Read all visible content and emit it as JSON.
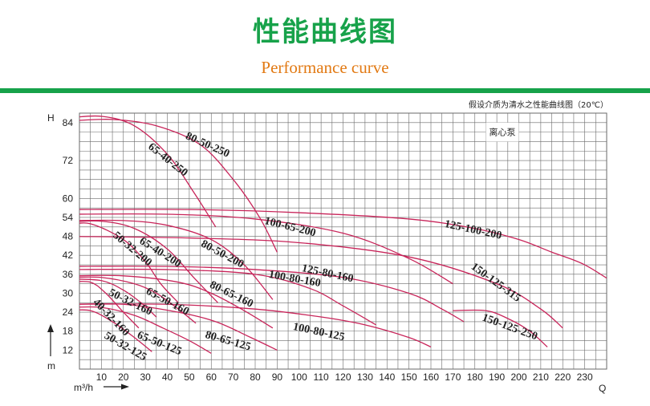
{
  "header": {
    "title_zh": "性能曲线图",
    "title_en": "Performance curve",
    "note": "假设介质为清水之性能曲线图（20℃）"
  },
  "colors": {
    "green": "#17a24a",
    "orange": "#e27a14",
    "curve": "#c8255a",
    "grid": "#6a6a6a"
  },
  "chart_data": {
    "type": "line",
    "title": "性能曲线图",
    "ylabel": "H",
    "yunit": "m",
    "xlabel": "Q",
    "xunit": "m³/h",
    "xlim": [
      0,
      240
    ],
    "ylim": [
      6,
      87
    ],
    "x_ticks": [
      10,
      20,
      30,
      40,
      50,
      60,
      70,
      80,
      90,
      100,
      110,
      120,
      130,
      140,
      150,
      160,
      170,
      180,
      190,
      200,
      210,
      220,
      230
    ],
    "y_ticks": [
      12,
      18,
      24,
      30,
      36,
      42,
      48,
      54,
      60,
      72,
      84
    ],
    "box_label": "离心泵",
    "series": [
      {
        "name": "80-50-250",
        "x": [
          -5,
          15,
          35,
          55,
          70,
          82,
          90
        ],
        "y": [
          84.5,
          85,
          83,
          77,
          66,
          54,
          43
        ],
        "label_pos": [
          48,
          79
        ],
        "label_rot": 24
      },
      {
        "name": "65-40-250",
        "x": [
          -5,
          10,
          25,
          40,
          52,
          62
        ],
        "y": [
          85.5,
          86,
          83,
          74,
          62,
          51
        ],
        "label_pos": [
          31,
          76
        ],
        "label_rot": 38
      },
      {
        "name": "125-100-200",
        "x": [
          -5,
          50,
          100,
          150,
          180,
          200,
          215,
          230,
          245
        ],
        "y": [
          56.5,
          56.5,
          55.5,
          53.5,
          50.5,
          47,
          43,
          39,
          32.5
        ],
        "label_pos": [
          166,
          51
        ],
        "label_rot": 12
      },
      {
        "name": "100-65-200",
        "x": [
          -5,
          40,
          80,
          120,
          150,
          170
        ],
        "y": [
          55,
          55,
          53.5,
          49,
          41,
          33
        ],
        "label_pos": [
          84,
          52
        ],
        "label_rot": 14
      },
      {
        "name": "80-50-200",
        "x": [
          -5,
          20,
          40,
          60,
          75,
          88
        ],
        "y": [
          53,
          53,
          51.5,
          47,
          39,
          28
        ],
        "label_pos": [
          55,
          45
        ],
        "label_rot": 28
      },
      {
        "name": "65-40-200",
        "x": [
          -5,
          10,
          25,
          40,
          52,
          63
        ],
        "y": [
          52.5,
          52.8,
          50.5,
          44,
          35,
          27
        ],
        "label_pos": [
          27,
          46
        ],
        "label_rot": 32
      },
      {
        "name": "50-32-200",
        "x": [
          -5,
          5,
          20,
          30,
          37,
          45
        ],
        "y": [
          51.5,
          52,
          47,
          40,
          33,
          27
        ],
        "label_pos": [
          15,
          48
        ],
        "label_rot": 40
      },
      {
        "name": "150-125-315",
        "x": [
          -5,
          50,
          100,
          150,
          190,
          210,
          220
        ],
        "y": [
          48,
          47.5,
          46,
          41.5,
          33,
          25,
          19
        ],
        "label_pos": [
          178,
          38
        ],
        "label_rot": 36
      },
      {
        "name": "125-80-160",
        "x": [
          -5,
          40,
          80,
          120,
          150,
          165,
          175
        ],
        "y": [
          38.5,
          38.5,
          37.5,
          35,
          30,
          25,
          21
        ],
        "label_pos": [
          101,
          37
        ],
        "label_rot": 12
      },
      {
        "name": "100-80-160",
        "x": [
          -5,
          40,
          80,
          105,
          120,
          135
        ],
        "y": [
          37.5,
          37.5,
          36,
          31.5,
          26,
          20
        ],
        "label_pos": [
          86,
          35
        ],
        "label_rot": 10
      },
      {
        "name": "80-65-160",
        "x": [
          -5,
          20,
          45,
          60,
          75,
          88
        ],
        "y": [
          35.5,
          35.5,
          33.5,
          30,
          24.5,
          19
        ],
        "label_pos": [
          59,
          32
        ],
        "label_rot": 26
      },
      {
        "name": "65-50-160",
        "x": [
          -5,
          10,
          25,
          35,
          45,
          53
        ],
        "y": [
          35,
          35,
          33,
          30,
          25,
          20.5
        ],
        "label_pos": [
          30,
          30
        ],
        "label_rot": 28
      },
      {
        "name": "50-32-160",
        "x": [
          -5,
          10,
          20,
          28,
          35
        ],
        "y": [
          34.5,
          34,
          31,
          27,
          22.5
        ],
        "label_pos": [
          13,
          29.5
        ],
        "label_rot": 26
      },
      {
        "name": "40-32-160",
        "x": [
          -5,
          5,
          12,
          20,
          27
        ],
        "y": [
          33.5,
          33.5,
          30,
          24,
          19
        ],
        "label_pos": [
          6,
          27
        ],
        "label_rot": 46
      },
      {
        "name": "100-80-125",
        "x": [
          -5,
          40,
          80,
          110,
          130,
          150,
          160
        ],
        "y": [
          26.5,
          26.5,
          25,
          22.5,
          20,
          16,
          13
        ],
        "label_pos": [
          97,
          18.5
        ],
        "label_rot": 12
      },
      {
        "name": "80-65-125",
        "x": [
          -5,
          20,
          45,
          62,
          78,
          90
        ],
        "y": [
          26.5,
          26.5,
          24,
          21,
          16,
          12
        ],
        "label_pos": [
          57,
          16
        ],
        "label_rot": 16
      },
      {
        "name": "65-50-125",
        "x": [
          -5,
          10,
          25,
          38,
          50,
          60
        ],
        "y": [
          25.5,
          25.5,
          23,
          19,
          15,
          11
        ],
        "label_pos": [
          26,
          16
        ],
        "label_rot": 22
      },
      {
        "name": "50-32-125",
        "x": [
          -5,
          5,
          15,
          25,
          33
        ],
        "y": [
          24.5,
          24.5,
          21,
          16,
          11.5
        ],
        "label_pos": [
          11,
          16
        ],
        "label_rot": 30
      },
      {
        "name": "150-125-250",
        "x": [
          170,
          185,
          195,
          205,
          213
        ],
        "y": [
          24.5,
          24.5,
          22,
          18,
          13
        ],
        "label_pos": [
          183,
          21.5
        ],
        "label_rot": 20
      }
    ]
  }
}
